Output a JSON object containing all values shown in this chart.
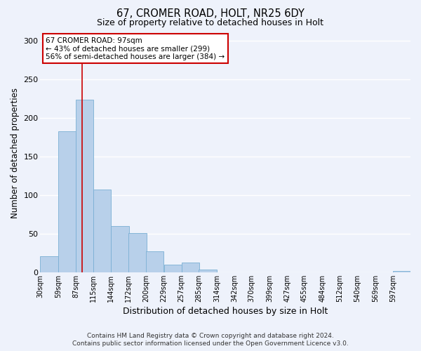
{
  "title1": "67, CROMER ROAD, HOLT, NR25 6DY",
  "title2": "Size of property relative to detached houses in Holt",
  "xlabel": "Distribution of detached houses by size in Holt",
  "ylabel": "Number of detached properties",
  "footer1": "Contains HM Land Registry data © Crown copyright and database right 2024.",
  "footer2": "Contains public sector information licensed under the Open Government Licence v3.0.",
  "bin_labels": [
    "30sqm",
    "59sqm",
    "87sqm",
    "115sqm",
    "144sqm",
    "172sqm",
    "200sqm",
    "229sqm",
    "257sqm",
    "285sqm",
    "314sqm",
    "342sqm",
    "370sqm",
    "399sqm",
    "427sqm",
    "455sqm",
    "484sqm",
    "512sqm",
    "540sqm",
    "569sqm",
    "597sqm"
  ],
  "bar_heights": [
    21,
    183,
    224,
    107,
    60,
    51,
    27,
    10,
    13,
    3,
    0,
    0,
    0,
    0,
    0,
    0,
    0,
    0,
    0,
    0,
    2
  ],
  "bar_color": "#b8d0ea",
  "bar_edge_color": "#7aafd4",
  "background_color": "#eef2fb",
  "grid_color": "#ffffff",
  "vline_color": "#cc0000",
  "annotation_text1": "67 CROMER ROAD: 97sqm",
  "annotation_text2": "← 43% of detached houses are smaller (299)",
  "annotation_text3": "56% of semi-detached houses are larger (384) →",
  "annotation_box_color": "#ffffff",
  "annotation_border_color": "#cc0000",
  "ylim": [
    0,
    310
  ],
  "bin_width": 28.5
}
